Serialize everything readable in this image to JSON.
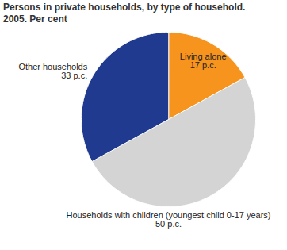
{
  "chart_data": {
    "type": "pie",
    "title": "Persons in private households, by type of household.",
    "subtitle": "2005. Per cent",
    "categories": [
      "Living alone",
      "Households with children (youngest child 0-17 years)",
      "Other households"
    ],
    "values": [
      17,
      50,
      33
    ],
    "value_labels": [
      "17 p.c.",
      "50 p.c.",
      "33 p.c."
    ],
    "colors": [
      "#f7941d",
      "#d4d4d4",
      "#1f3a8f"
    ],
    "data_labels": true
  }
}
